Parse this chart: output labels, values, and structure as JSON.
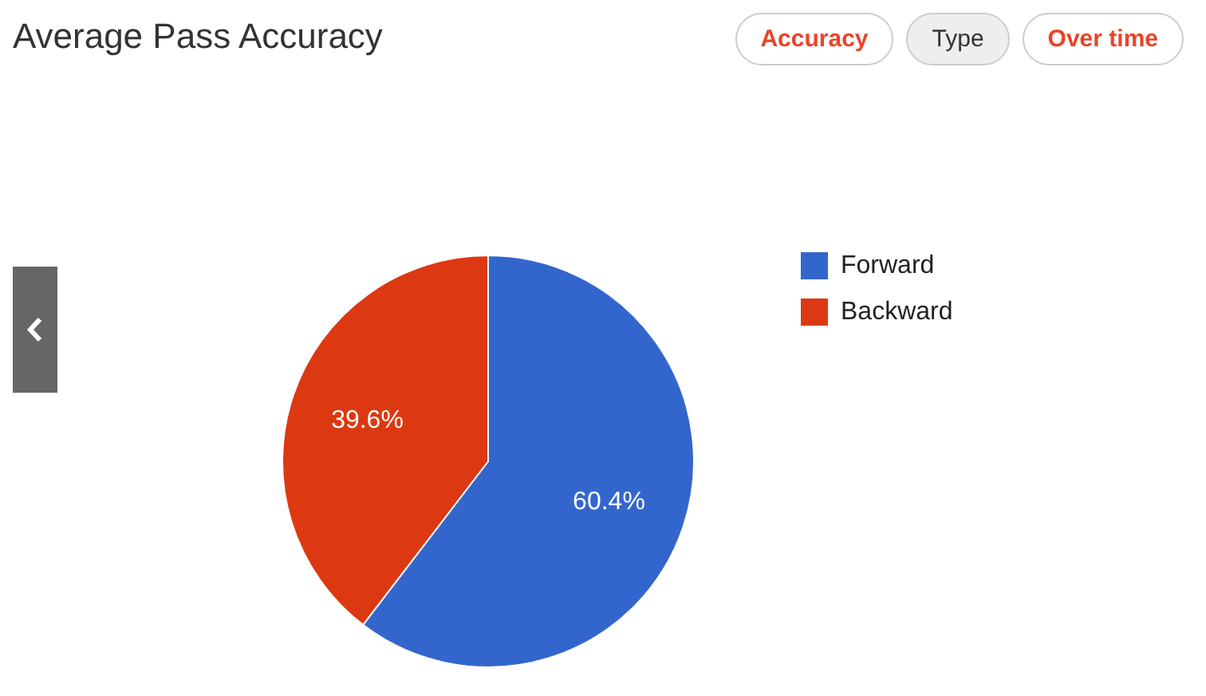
{
  "chart_data": {
    "type": "pie",
    "title": "Average Pass Accuracy",
    "annotations": [
      "Accuracy",
      "Type",
      "Over time"
    ],
    "categories": [
      "Forward",
      "Backward"
    ],
    "values": [
      60.4,
      39.6
    ],
    "colors": [
      "#3366cc",
      "#dc3912"
    ],
    "value_labels": [
      "60.4%",
      "39.6%"
    ],
    "legend": "right"
  }
}
